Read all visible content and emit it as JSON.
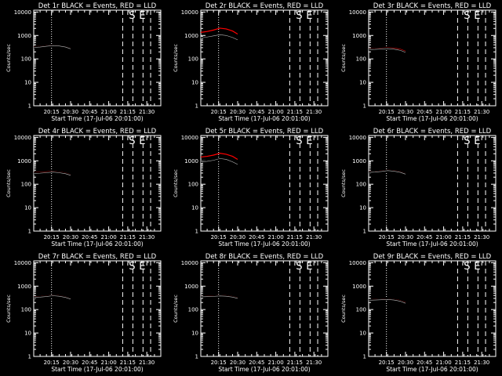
{
  "chart_data": {
    "type": "line",
    "x_tick_labels": [
      "20:15",
      "20:30",
      "20:45",
      "21:00",
      "21:15",
      "21:30"
    ],
    "x_ticks_min": [
      14,
      29,
      44,
      59,
      74,
      89
    ],
    "x_range_min": [
      0,
      100
    ],
    "xlabel": "Start Time (17-Jul-06 20:01:00)",
    "ylabel": "Counts/sec",
    "y_scale": "log",
    "y_range": [
      1,
      12000
    ],
    "y_tick_labels": [
      "1",
      "10",
      "100",
      "1000",
      "10000"
    ],
    "y_ticks": [
      1,
      10,
      100,
      1000,
      10000
    ],
    "vertical_lines": [
      {
        "style": "dotted",
        "x_min": 14
      },
      {
        "style": "dashed",
        "x_min": 70
      },
      {
        "style": "dashed",
        "x_min": 78,
        "label": "S"
      },
      {
        "style": "dashed",
        "x_min": 86,
        "label": "E"
      },
      {
        "style": "dashed",
        "x_min": 92
      }
    ],
    "series_colors": {
      "events": "#000000",
      "lld": "#ff0000"
    },
    "panels": [
      {
        "title": "Det 1r BLACK = Events, RED = LLD",
        "x": [
          0,
          5,
          10,
          15,
          20,
          25,
          29
        ],
        "events": [
          310,
          320,
          345,
          370,
          355,
          320,
          270
        ],
        "lld": [
          330,
          340,
          365,
          390,
          370,
          335,
          285
        ]
      },
      {
        "title": "Det 2r BLACK = Events, RED = LLD",
        "x": [
          0,
          5,
          10,
          15,
          20,
          25,
          29
        ],
        "events": [
          780,
          860,
          960,
          1080,
          1000,
          820,
          650
        ],
        "lld": [
          1350,
          1480,
          1700,
          2050,
          1900,
          1550,
          1150
        ]
      },
      {
        "title": "Det 3r BLACK = Events, RED = LLD",
        "x": [
          0,
          5,
          10,
          15,
          20,
          25,
          29
        ],
        "events": [
          250,
          255,
          265,
          275,
          260,
          230,
          190
        ],
        "lld": [
          265,
          270,
          285,
          295,
          285,
          255,
          210
        ]
      },
      {
        "title": "Det 4r BLACK = Events, RED = LLD",
        "x": [
          0,
          5,
          10,
          15,
          20,
          25,
          29
        ],
        "events": [
          290,
          295,
          310,
          330,
          310,
          280,
          240
        ],
        "lld": [
          310,
          315,
          335,
          350,
          330,
          300,
          255
        ]
      },
      {
        "title": "Det 5r BLACK = Events, RED = LLD",
        "x": [
          0,
          5,
          10,
          15,
          20,
          25,
          29
        ],
        "events": [
          900,
          950,
          1050,
          1250,
          1150,
          900,
          700
        ],
        "lld": [
          1450,
          1550,
          1750,
          2100,
          1900,
          1550,
          1150
        ]
      },
      {
        "title": "Det 6r BLACK = Events, RED = LLD",
        "x": [
          0,
          5,
          10,
          15,
          20,
          25,
          29
        ],
        "events": [
          320,
          330,
          350,
          380,
          360,
          320,
          270
        ],
        "lld": [
          340,
          350,
          370,
          400,
          380,
          340,
          285
        ]
      },
      {
        "title": "Det 7r BLACK = Events, RED = LLD",
        "x": [
          0,
          5,
          10,
          15,
          20,
          25,
          29
        ],
        "events": [
          330,
          340,
          360,
          390,
          370,
          330,
          280
        ],
        "lld": [
          350,
          360,
          380,
          410,
          390,
          350,
          295
        ]
      },
      {
        "title": "Det 8r BLACK = Events, RED = LLD",
        "x": [
          0,
          5,
          10,
          15,
          20,
          25,
          29
        ],
        "events": [
          350,
          355,
          365,
          380,
          370,
          340,
          300
        ],
        "lld": [
          370,
          375,
          385,
          400,
          390,
          360,
          320
        ]
      },
      {
        "title": "Det 9r BLACK = Events, RED = LLD",
        "x": [
          0,
          5,
          10,
          15,
          20,
          25,
          29
        ],
        "events": [
          250,
          255,
          262,
          270,
          255,
          225,
          185
        ],
        "lld": [
          262,
          268,
          276,
          285,
          270,
          240,
          200
        ]
      }
    ]
  }
}
